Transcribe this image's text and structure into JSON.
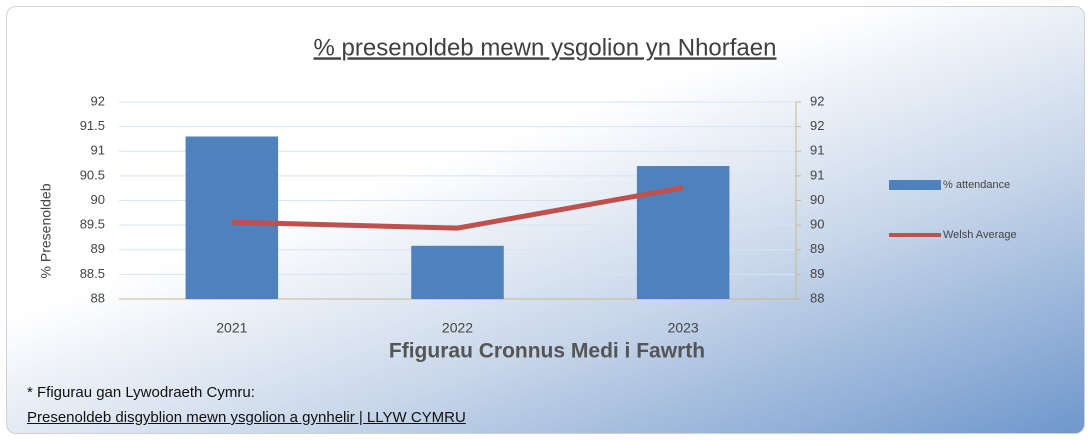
{
  "chart_data": {
    "type": "combo",
    "title": "% presenoldeb mewn ysgolion yn Nhorfaen",
    "x_label": "Ffigurau Cronnus Medi i Fawrth",
    "y_label": "% Presenoldeb",
    "categories": [
      "2021",
      "2022",
      "2023"
    ],
    "series": [
      {
        "name": "% attendance",
        "type": "bar",
        "color": "#4f81bd",
        "values": [
          91.3,
          89.08,
          90.7
        ]
      },
      {
        "name": "Welsh Average",
        "type": "line",
        "color": "#c0504d",
        "axis": "y2",
        "values": [
          89.56,
          89.44,
          90.26
        ]
      }
    ],
    "ylim": [
      88,
      92
    ],
    "yticks": [
      88,
      88.5,
      89,
      89.5,
      90,
      90.5,
      91,
      91.5,
      92
    ],
    "y2lim": [
      88,
      92
    ],
    "y2ticks": [
      88,
      {
        "value": 88.5,
        "label": "89"
      },
      89,
      {
        "value": 89.5,
        "label": "90"
      },
      90,
      {
        "value": 90.5,
        "label": "91"
      },
      91,
      {
        "value": 91.5,
        "label": "92"
      },
      92
    ],
    "grid": true,
    "legend": "right"
  },
  "footnote": {
    "text": "* Ffigurau gan Lywodraeth Cymru:",
    "link": "Presenoldeb disgyblion mewn ysgolion a gynhelir | LLYW CYMRU"
  }
}
